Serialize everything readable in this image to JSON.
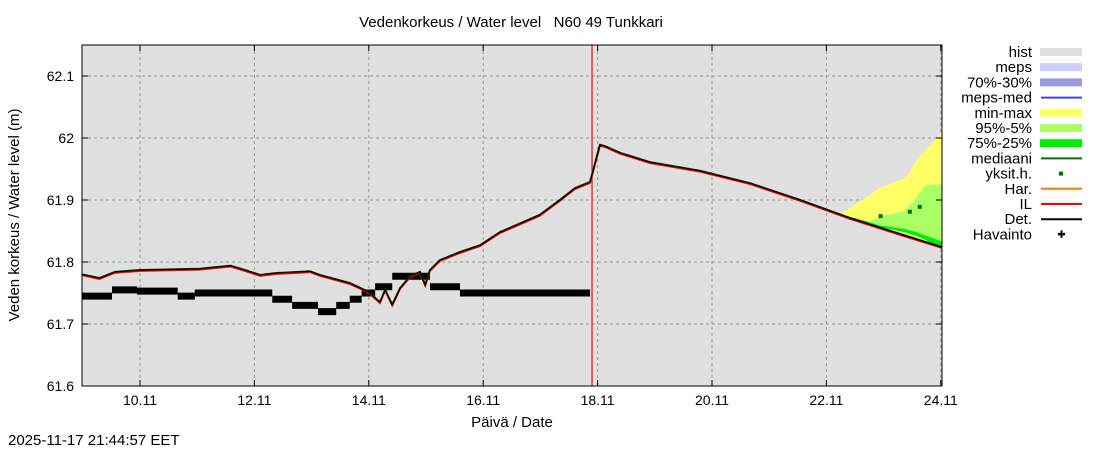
{
  "chart_data": {
    "type": "line",
    "title": "Vedenkorkeus / Water level   N60 49 Tunkkari",
    "xlabel": "Päivä / Date",
    "ylabel": "Veden korkeus / Water level (m)",
    "xlim": [
      "2025-11-08T23:40",
      "2025-11-24T00:30"
    ],
    "ylim": [
      61.6,
      62.15
    ],
    "grid": true,
    "legend_placement": "right",
    "x_ticks": [
      {
        "label": "10.11",
        "x": "2025-11-10T00:00"
      },
      {
        "label": "12.11",
        "x": "2025-11-12T00:00"
      },
      {
        "label": "14.11",
        "x": "2025-11-14T00:00"
      },
      {
        "label": "16.11",
        "x": "2025-11-16T00:00"
      },
      {
        "label": "18.11",
        "x": "2025-11-18T00:00"
      },
      {
        "label": "20.11",
        "x": "2025-11-20T00:00"
      },
      {
        "label": "22.11",
        "x": "2025-11-22T00:00"
      },
      {
        "label": "24.11",
        "x": "2025-11-24T00:00"
      }
    ],
    "y_ticks": [
      {
        "label": "61.6",
        "y": 61.6
      },
      {
        "label": "61.7",
        "y": 61.7
      },
      {
        "label": "61.8",
        "y": 61.8
      },
      {
        "label": "61.9",
        "y": 61.9
      },
      {
        "label": "62",
        "y": 62.0
      },
      {
        "label": "62.1",
        "y": 62.1
      }
    ],
    "forecast_time": "2025-11-17T21:40",
    "colors": {
      "background": "#e0e0e0",
      "forecast_line": "#ff0000",
      "minmax": "#ffff66",
      "p95_5": "#aaff66",
      "p75_25": "#00ee00",
      "median": "#007700",
      "il": "#ff0000",
      "det": "#000000"
    },
    "legend": [
      {
        "label": "hist",
        "kind": "band",
        "color": "#dddddd"
      },
      {
        "label": "meps",
        "kind": "band",
        "color": "#ccccff"
      },
      {
        "label": "70%-30%",
        "kind": "band",
        "color": "#9999dd"
      },
      {
        "label": "meps-med",
        "kind": "line",
        "color": "#4444dd"
      },
      {
        "label": "min-max",
        "kind": "band",
        "color": "#ffff66"
      },
      {
        "label": "95%-5%",
        "kind": "band",
        "color": "#aaff66"
      },
      {
        "label": "75%-25%",
        "kind": "band",
        "color": "#00ee00"
      },
      {
        "label": "mediaani",
        "kind": "line",
        "color": "#007700"
      },
      {
        "label": "yksit.h.",
        "kind": "dot",
        "color": "#007700"
      },
      {
        "label": "Har.",
        "kind": "line",
        "color": "#ff7700"
      },
      {
        "label": "IL",
        "kind": "line",
        "color": "#ff0000"
      },
      {
        "label": "Det.",
        "kind": "line",
        "color": "#000000"
      },
      {
        "label": "Havainto",
        "kind": "cross",
        "color": "#000000"
      }
    ],
    "simulation": [
      [
        "2025-11-08T23:40",
        61.78
      ],
      [
        "2025-11-09T07:00",
        61.774
      ],
      [
        "2025-11-09T13:30",
        61.784
      ],
      [
        "2025-11-10T00:00",
        61.787
      ],
      [
        "2025-11-11T01:00",
        61.789
      ],
      [
        "2025-11-11T14:00",
        61.794
      ],
      [
        "2025-11-11T20:00",
        61.787
      ],
      [
        "2025-11-12T02:30",
        61.779
      ],
      [
        "2025-11-12T08:40",
        61.782
      ],
      [
        "2025-11-12T23:20",
        61.785
      ],
      [
        "2025-11-13T03:30",
        61.779
      ],
      [
        "2025-11-13T16:00",
        61.766
      ],
      [
        "2025-11-13T23:50",
        61.752
      ],
      [
        "2025-11-14T04:40",
        61.735
      ],
      [
        "2025-11-14T06:50",
        61.755
      ],
      [
        "2025-11-14T09:50",
        61.731
      ],
      [
        "2025-11-14T13:10",
        61.758
      ],
      [
        "2025-11-14T17:20",
        61.777
      ],
      [
        "2025-11-14T21:30",
        61.784
      ],
      [
        "2025-11-14T23:40",
        61.763
      ],
      [
        "2025-11-15T01:40",
        61.787
      ],
      [
        "2025-11-15T05:50",
        61.803
      ],
      [
        "2025-11-15T14:15",
        61.816
      ],
      [
        "2025-11-15T22:40",
        61.827
      ],
      [
        "2025-11-16T07:00",
        61.848
      ],
      [
        "2025-11-16T23:45",
        61.876
      ],
      [
        "2025-11-17T08:10",
        61.9
      ],
      [
        "2025-11-17T14:30",
        61.919
      ],
      [
        "2025-11-17T20:50",
        61.929
      ],
      [
        "2025-11-18T01:00",
        61.989
      ],
      [
        "2025-11-18T03:00",
        61.987
      ],
      [
        "2025-11-18T09:25",
        61.976
      ],
      [
        "2025-11-18T22:00",
        61.961
      ],
      [
        "2025-11-19T19:00",
        61.947
      ],
      [
        "2025-11-20T16:00",
        61.927
      ],
      [
        "2025-11-21T13:00",
        61.9
      ],
      [
        "2025-11-22T09:50",
        61.871
      ],
      [
        "2025-11-23T07:00",
        61.845
      ],
      [
        "2025-11-24T00:30",
        61.824
      ]
    ],
    "observations": [
      [
        "2025-11-08T23:40",
        "2025-11-09T12:15",
        61.745
      ],
      [
        "2025-11-09T12:15",
        "2025-11-09T22:45",
        61.755
      ],
      [
        "2025-11-09T22:45",
        "2025-11-10T15:50",
        61.753
      ],
      [
        "2025-11-10T15:50",
        "2025-11-10T23:00",
        61.745
      ],
      [
        "2025-11-10T23:00",
        "2025-11-12T07:30",
        61.75
      ],
      [
        "2025-11-12T07:30",
        "2025-11-12T15:50",
        61.74
      ],
      [
        "2025-11-12T15:50",
        "2025-11-13T02:40",
        61.73
      ],
      [
        "2025-11-13T02:40",
        "2025-11-13T10:20",
        61.72
      ],
      [
        "2025-11-13T10:20",
        "2025-11-13T16:00",
        61.73
      ],
      [
        "2025-11-13T16:00",
        "2025-11-13T21:00",
        61.74
      ],
      [
        "2025-11-13T21:00",
        "2025-11-14T02:40",
        61.75
      ],
      [
        "2025-11-14T02:40",
        "2025-11-14T09:50",
        61.76
      ],
      [
        "2025-11-14T09:50",
        "2025-11-15T01:40",
        61.777
      ],
      [
        "2025-11-15T01:40",
        "2025-11-15T14:15",
        61.76
      ],
      [
        "2025-11-15T14:15",
        "2025-11-17T20:50",
        61.75
      ]
    ],
    "ensemble": {
      "x": [
        "2025-11-22T05:45",
        "2025-11-22T18:20",
        "2025-11-22T22:30",
        "2025-11-23T09:00",
        "2025-11-23T11:00",
        "2025-11-23T13:10",
        "2025-11-23T17:20",
        "2025-11-24T00:30"
      ],
      "min": [
        61.874,
        61.86,
        61.855,
        61.847,
        61.844,
        61.842,
        61.835,
        61.82
      ],
      "p25": [
        61.875,
        61.861,
        61.856,
        61.848,
        61.845,
        61.843,
        61.836,
        61.821
      ],
      "p75": [
        61.877,
        61.864,
        61.859,
        61.853,
        61.851,
        61.849,
        61.843,
        61.833
      ],
      "p95": [
        61.877,
        61.865,
        61.874,
        61.882,
        61.892,
        61.9,
        61.923,
        61.926
      ],
      "max": [
        61.877,
        61.908,
        61.92,
        61.935,
        61.945,
        61.96,
        61.98,
        62.008
      ]
    },
    "single_members": [
      [
        "2025-11-22T22:45",
        61.874
      ],
      [
        "2025-11-23T11:00",
        61.881
      ],
      [
        "2025-11-23T15:10",
        61.889
      ]
    ]
  },
  "footer": {
    "timestamp": "2025-11-17 21:44:57 EET"
  }
}
